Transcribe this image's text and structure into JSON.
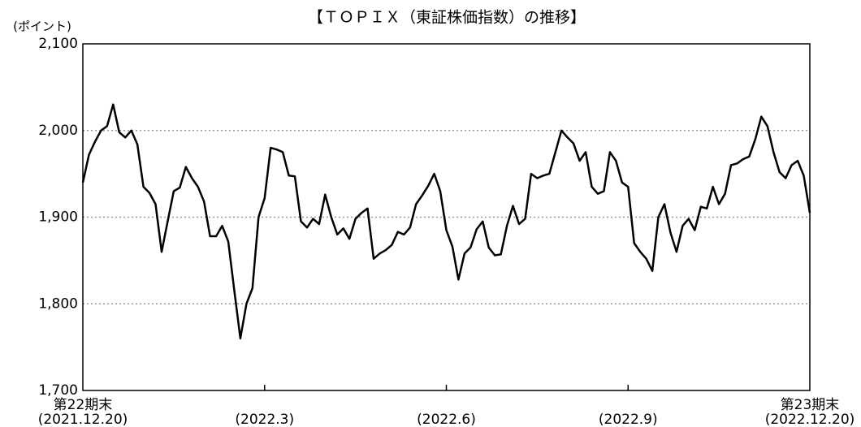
{
  "chart_data": {
    "type": "line",
    "title": "【ＴＯＰＩＸ（東証株価指数）の推移】",
    "y_label": "(ポイント)",
    "categories": [
      [
        "第22期末",
        "(2021.12.20)"
      ],
      null,
      null,
      null,
      null,
      null,
      null,
      null,
      null,
      null,
      null,
      null,
      null,
      null,
      null,
      null,
      null,
      null,
      null,
      null,
      null,
      null,
      null,
      null,
      null,
      null,
      null,
      null,
      null,
      null,
      [
        "(2022.3)"
      ],
      null,
      null,
      null,
      null,
      null,
      null,
      null,
      null,
      null,
      null,
      null,
      null,
      null,
      null,
      null,
      null,
      null,
      null,
      null,
      null,
      null,
      null,
      null,
      null,
      null,
      null,
      null,
      null,
      null,
      [
        "(2022.6)"
      ],
      null,
      null,
      null,
      null,
      null,
      null,
      null,
      null,
      null,
      null,
      null,
      null,
      null,
      null,
      null,
      null,
      null,
      null,
      null,
      null,
      null,
      null,
      null,
      null,
      null,
      null,
      null,
      null,
      null,
      [
        "(2022.9)"
      ],
      null,
      null,
      null,
      null,
      null,
      null,
      null,
      null,
      null,
      null,
      null,
      null,
      null,
      null,
      null,
      null,
      null,
      null,
      null,
      null,
      null,
      null,
      null,
      null,
      null,
      null,
      null,
      null,
      null,
      [
        "第23期末",
        "(2022.12.20)"
      ]
    ],
    "series": [
      {
        "name": "TOPIX",
        "color": "#000000",
        "values": [
          1940,
          1972,
          1987,
          2000,
          2005,
          2030,
          1998,
          1992,
          2000,
          1984,
          1935,
          1928,
          1915,
          1860,
          1895,
          1930,
          1934,
          1958,
          1945,
          1935,
          1918,
          1878,
          1878,
          1890,
          1872,
          1815,
          1760,
          1800,
          1818,
          1900,
          1922,
          1980,
          1978,
          1975,
          1948,
          1947,
          1895,
          1888,
          1898,
          1892,
          1926,
          1900,
          1880,
          1887,
          1875,
          1898,
          1905,
          1910,
          1852,
          1858,
          1862,
          1868,
          1883,
          1880,
          1888,
          1915,
          1925,
          1936,
          1950,
          1930,
          1885,
          1866,
          1828,
          1858,
          1865,
          1886,
          1895,
          1865,
          1856,
          1857,
          1890,
          1913,
          1892,
          1898,
          1950,
          1945,
          1948,
          1950,
          1975,
          2000,
          1992,
          1985,
          1965,
          1975,
          1935,
          1927,
          1930,
          1975,
          1965,
          1940,
          1935,
          1870,
          1860,
          1852,
          1838,
          1900,
          1915,
          1882,
          1860,
          1890,
          1898,
          1885,
          1912,
          1910,
          1935,
          1915,
          1927,
          1960,
          1962,
          1967,
          1970,
          1990,
          2016,
          2005,
          1975,
          1952,
          1945,
          1960,
          1965,
          1948,
          1905
        ]
      }
    ],
    "ylim": [
      1700,
      2100
    ],
    "yticks": [
      {
        "value": 1700,
        "label": "1,700"
      },
      {
        "value": 1800,
        "label": "1,800"
      },
      {
        "value": 1900,
        "label": "1,900"
      },
      {
        "value": 2000,
        "label": "2,000"
      },
      {
        "value": 2100,
        "label": "2,100"
      }
    ],
    "grid": true
  }
}
